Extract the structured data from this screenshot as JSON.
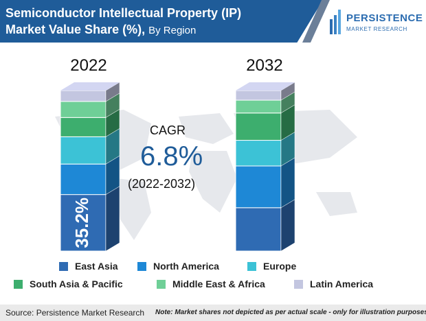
{
  "header": {
    "title_line1": "Semiconductor Intellectual Property (IP)",
    "title_line2": "Market Value Share (%),",
    "subtitle": "By Region"
  },
  "logo": {
    "name": "PERSISTENCE",
    "tagline": "MARKET RESEARCH"
  },
  "cagr": {
    "label": "CAGR",
    "value": "6.8%",
    "period": "(2022-2032)"
  },
  "footer": {
    "source": "Source: Persistence Market Research",
    "note": "Note: Market shares not depicted as per actual scale - only for illustration purposes"
  },
  "colors": {
    "header": "#1f5c99",
    "east_asia": "#2f6bb3",
    "north_america": "#1e88d6",
    "europe": "#3cc2d6",
    "south_asia_pacific": "#3dae6e",
    "middle_east_africa": "#6fcf97",
    "latin_america": "#c3c6e0"
  },
  "chart_data": {
    "type": "bar",
    "stacked": true,
    "categories": [
      "2022",
      "2032"
    ],
    "series": [
      {
        "name": "East Asia",
        "values": [
          35.2,
          27.0
        ],
        "color": "#2f6bb3",
        "data_labels": [
          "35.2%",
          ""
        ]
      },
      {
        "name": "North America",
        "values": [
          19.0,
          26.0
        ],
        "color": "#1e88d6"
      },
      {
        "name": "Europe",
        "values": [
          17.0,
          16.0
        ],
        "color": "#3cc2d6"
      },
      {
        "name": "South Asia & Pacific",
        "values": [
          12.0,
          17.0
        ],
        "color": "#3dae6e"
      },
      {
        "name": "Middle East & Africa",
        "values": [
          10.0,
          8.0
        ],
        "color": "#6fcf97"
      },
      {
        "name": "Latin America",
        "values": [
          6.8,
          6.0
        ],
        "color": "#c3c6e0"
      }
    ],
    "ylim": [
      0,
      100
    ],
    "legend_position": "bottom",
    "grid": false
  }
}
